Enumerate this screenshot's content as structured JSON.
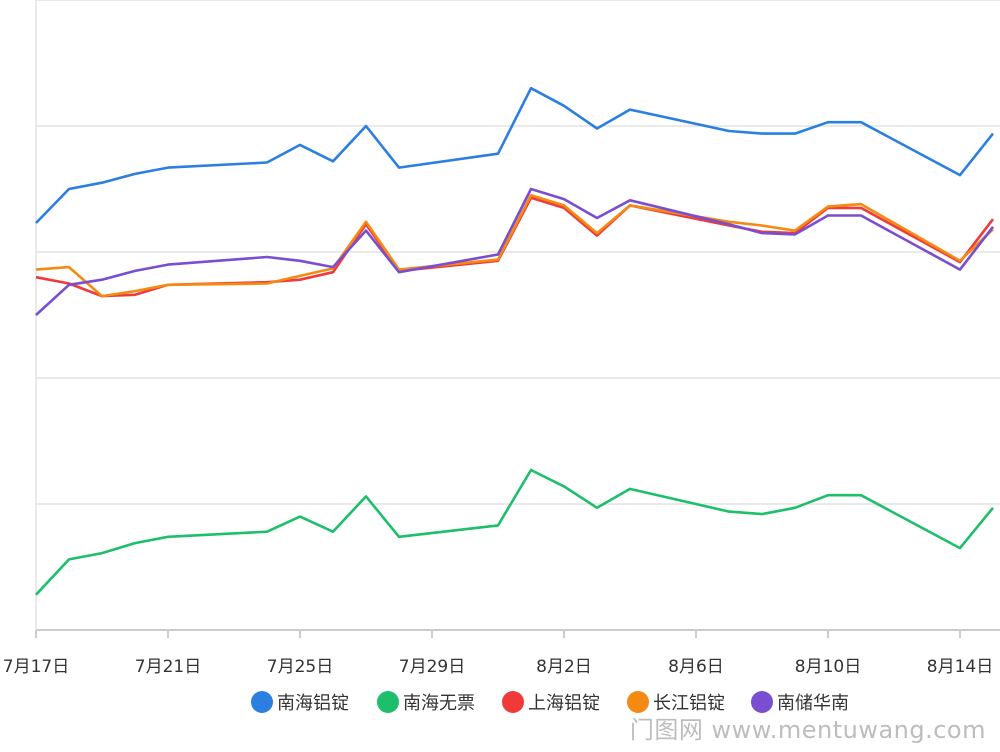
{
  "chart_data": {
    "type": "line",
    "x": [
      "7月17日",
      "7月18日",
      "7月19日",
      "7月20日",
      "7月21日",
      "7月24日",
      "7月25日",
      "7月26日",
      "7月27日",
      "7月28日",
      "7月31日",
      "8月1日",
      "8月2日",
      "8月3日",
      "8月4日",
      "8月7日",
      "8月8日",
      "8月9日",
      "8月10日",
      "8月11日",
      "8月14日",
      "8月15日"
    ],
    "x_ticks": [
      "7月17日",
      "7月21日",
      "7月25日",
      "7月29日",
      "8月2日",
      "8月6日",
      "8月10日",
      "8月14日"
    ],
    "ylim": [
      1000,
      6000
    ],
    "y_grid": [
      1000,
      2000,
      3000,
      4000,
      5000,
      6000
    ],
    "grid": true,
    "legend": "bottom",
    "series": [
      {
        "name": "南海铝锭",
        "color": "#2b7fe0",
        "values": [
          4230,
          4500,
          4550,
          4620,
          4670,
          4710,
          4850,
          4720,
          5000,
          4670,
          4780,
          5300,
          5160,
          4980,
          5130,
          4960,
          4940,
          4940,
          5030,
          5030,
          4610,
          4940
        ]
      },
      {
        "name": "南海无票",
        "color": "#1dbf6a",
        "values": [
          1280,
          1560,
          1610,
          1690,
          1740,
          1780,
          1900,
          1780,
          2060,
          1740,
          1830,
          2270,
          2140,
          1970,
          2120,
          1940,
          1920,
          1970,
          2070,
          2070,
          1650,
          1970
        ]
      },
      {
        "name": "上海铝锭",
        "color": "#f03a3a",
        "values": [
          3800,
          3750,
          3650,
          3660,
          3740,
          3760,
          3780,
          3840,
          4220,
          3850,
          3930,
          4430,
          4350,
          4130,
          4370,
          4210,
          4160,
          4150,
          4350,
          4350,
          3920,
          4260
        ]
      },
      {
        "name": "长江铝锭",
        "color": "#f58a12",
        "values": [
          3860,
          3880,
          3650,
          3690,
          3740,
          3750,
          3810,
          3870,
          4240,
          3860,
          3940,
          4450,
          4370,
          4150,
          4370,
          4240,
          4210,
          4170,
          4360,
          4380,
          3930,
          4180
        ]
      },
      {
        "name": "南储华南",
        "color": "#7a4ed0",
        "values": [
          3500,
          3740,
          3780,
          3850,
          3900,
          3960,
          3930,
          3880,
          4170,
          3840,
          3980,
          4500,
          4420,
          4270,
          4410,
          4220,
          4150,
          4140,
          4290,
          4290,
          3860,
          4200
        ]
      }
    ]
  },
  "watermark": "门图网 www.mentuwang.com"
}
